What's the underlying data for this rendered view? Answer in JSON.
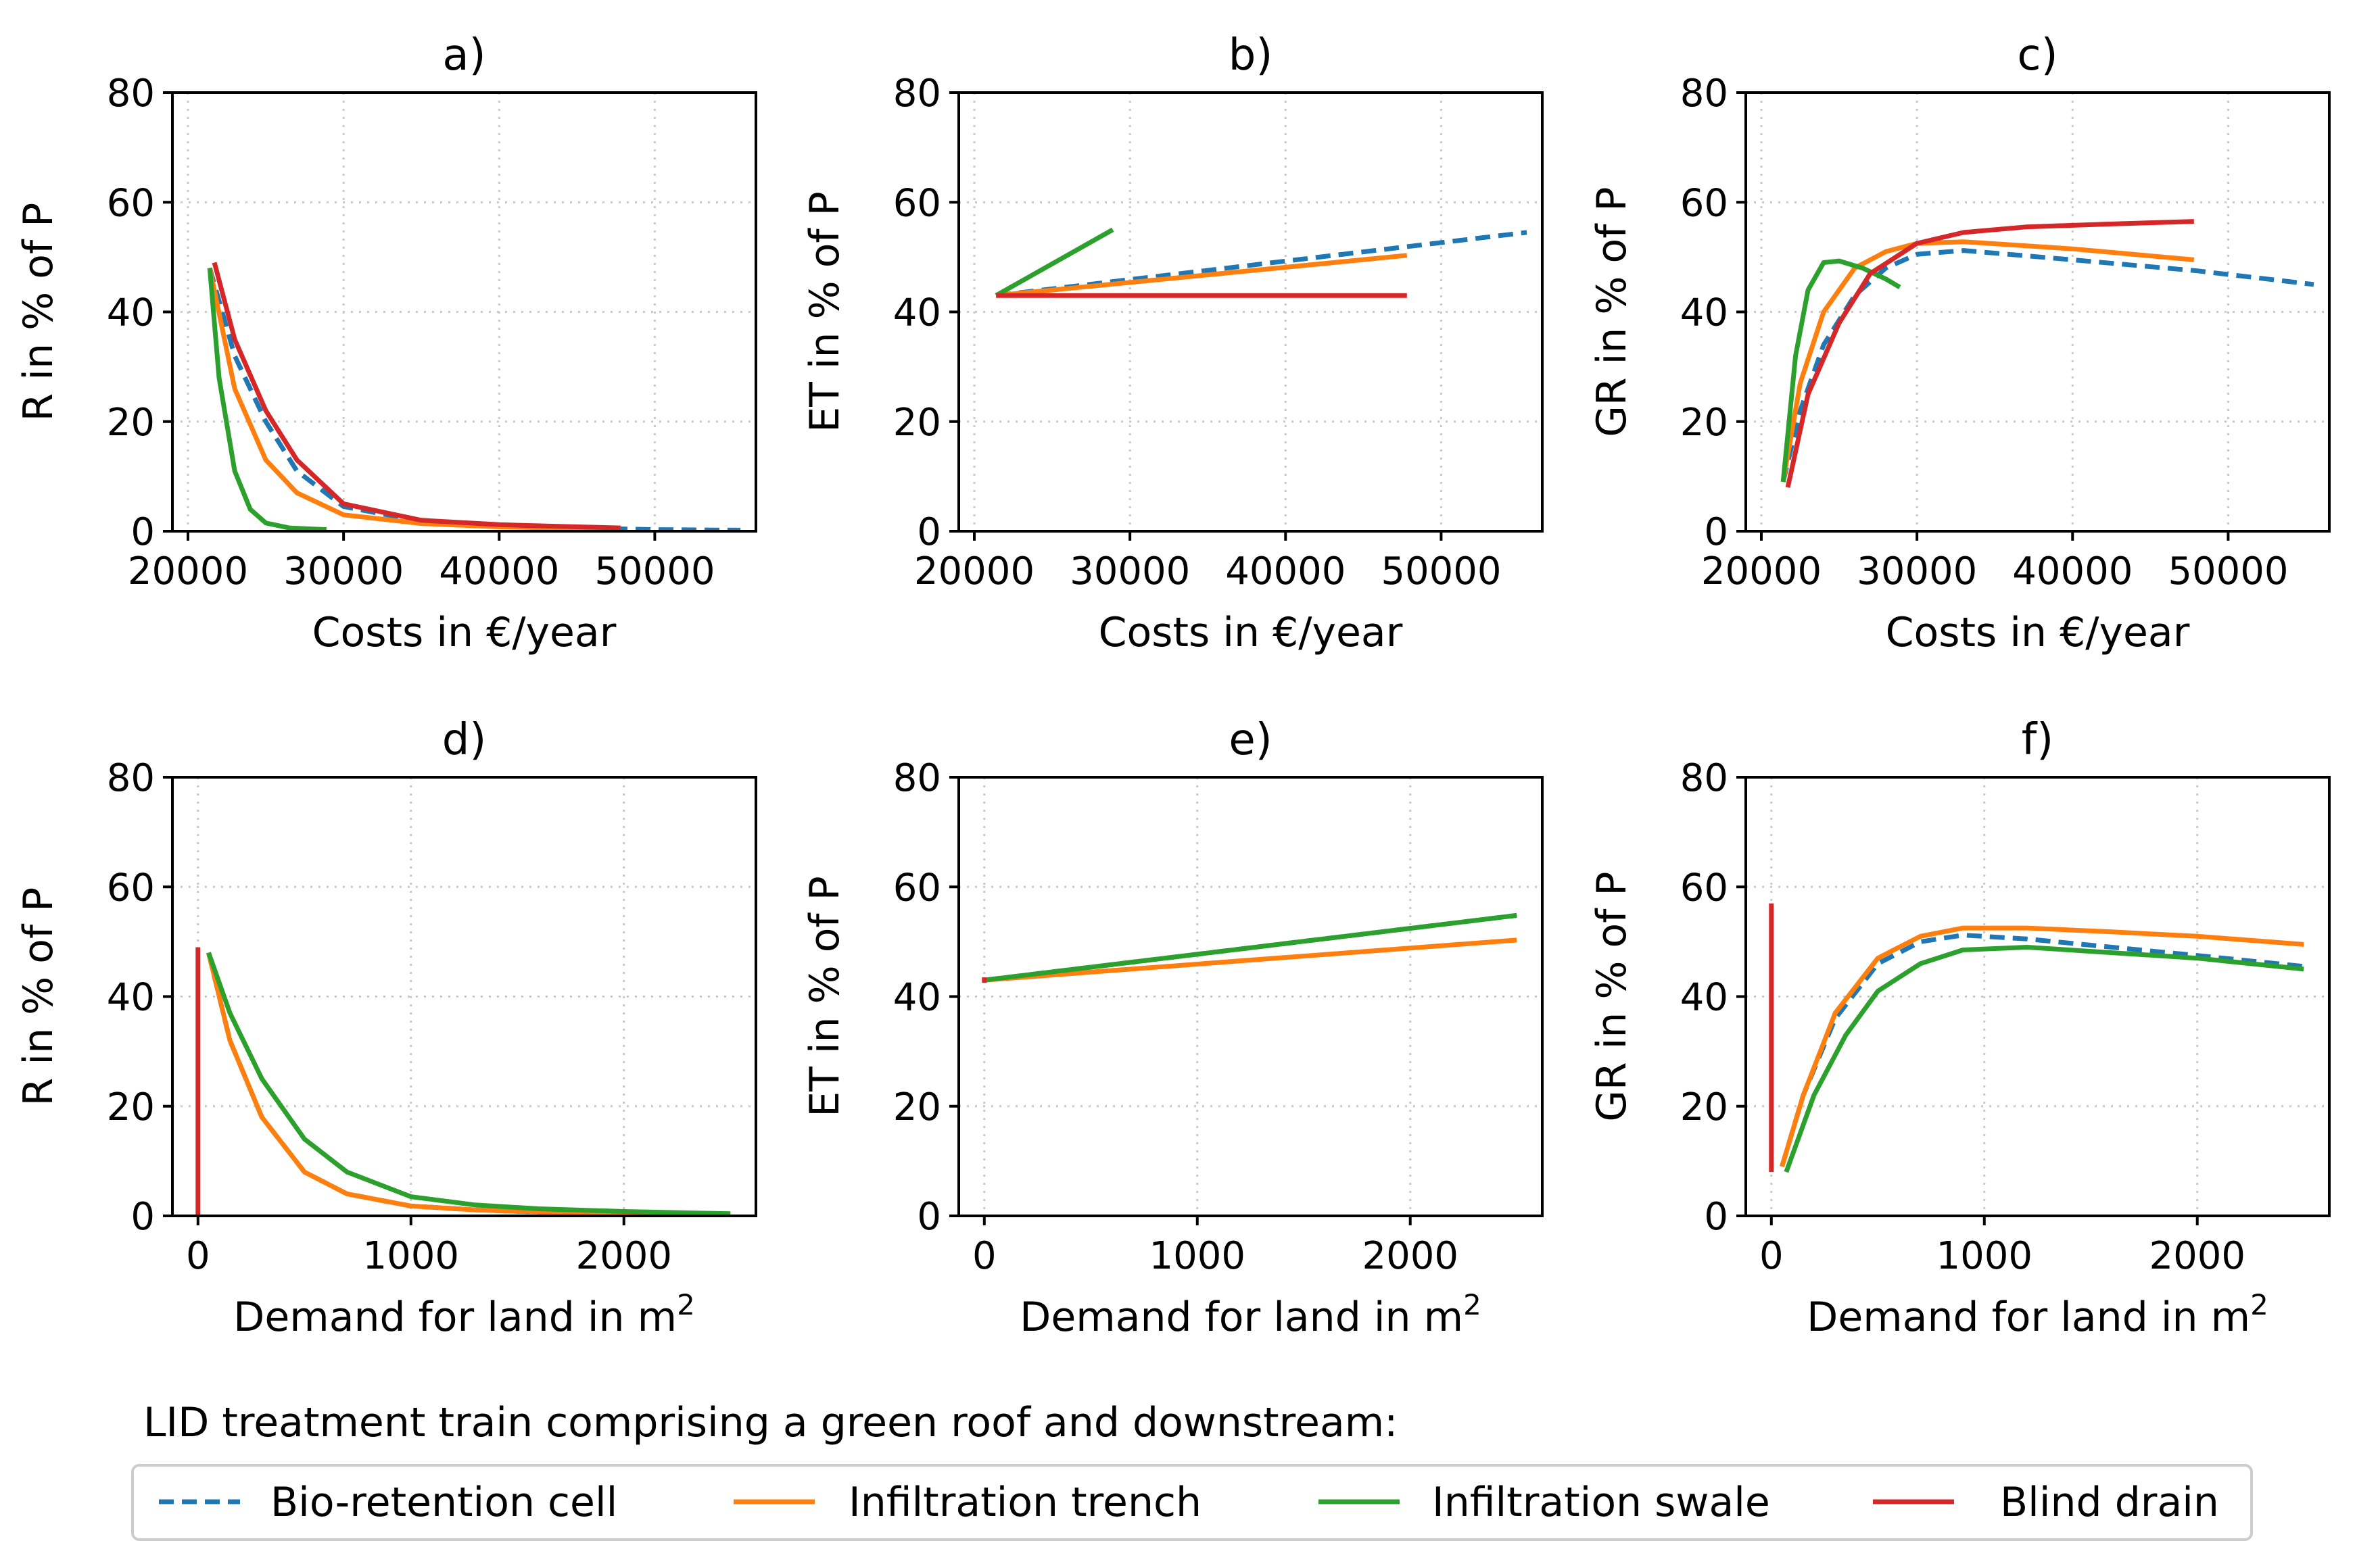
{
  "figure_note": "LID treatment train comprising a green roof and downstream:",
  "legend": [
    {
      "label": "Bio-retention cell",
      "color": "#1f77b4",
      "dash": true
    },
    {
      "label": "Infiltration trench",
      "color": "#ff7f0e",
      "dash": false
    },
    {
      "label": "Infiltration swale",
      "color": "#2ca02c",
      "dash": false
    },
    {
      "label": "Blind drain",
      "color": "#d62728",
      "dash": false
    }
  ],
  "chart_data": [
    {
      "type": "line",
      "title": "a)",
      "xlabel": "Costs in €/year",
      "ylabel": "R in % of P",
      "xlabel_sup": "",
      "xlim": [
        19000,
        56500
      ],
      "ylim": [
        0,
        80
      ],
      "xticks": [
        20000,
        30000,
        40000,
        50000
      ],
      "yticks": [
        0,
        20,
        40,
        60,
        80
      ],
      "series": [
        {
          "name": "Bio-retention cell",
          "x": [
            21400,
            23000,
            25000,
            27000,
            30000,
            35000,
            40000,
            45000,
            50000,
            55500
          ],
          "y": [
            48,
            32,
            20,
            11,
            4.5,
            1.8,
            1.0,
            0.6,
            0.3,
            0.2
          ]
        },
        {
          "name": "Infiltration trench",
          "x": [
            21400,
            23000,
            25000,
            27000,
            30000,
            35000,
            40000,
            45000,
            47800
          ],
          "y": [
            48,
            26,
            13,
            7,
            3,
            1.4,
            0.8,
            0.5,
            0.4
          ]
        },
        {
          "name": "Infiltration swale",
          "x": [
            21400,
            22000,
            23000,
            24000,
            25000,
            26500,
            28900
          ],
          "y": [
            48,
            28,
            11,
            4,
            1.5,
            0.6,
            0.3
          ]
        },
        {
          "name": "Blind drain",
          "x": [
            21700,
            23000,
            25000,
            27000,
            30000,
            35000,
            40000,
            45000,
            47800
          ],
          "y": [
            49,
            35,
            22,
            13,
            5,
            2,
            1.2,
            0.8,
            0.6
          ]
        }
      ]
    },
    {
      "type": "line",
      "title": "b)",
      "xlabel": "Costs in €/year",
      "ylabel": "ET in % of P",
      "xlabel_sup": "",
      "xlim": [
        19000,
        56500
      ],
      "ylim": [
        0,
        80
      ],
      "xticks": [
        20000,
        30000,
        40000,
        50000
      ],
      "yticks": [
        0,
        20,
        40,
        60,
        80
      ],
      "series": [
        {
          "name": "Bio-retention cell",
          "x": [
            21400,
            55500
          ],
          "y": [
            43,
            54.5
          ]
        },
        {
          "name": "Infiltration trench",
          "x": [
            21400,
            47800
          ],
          "y": [
            43,
            50.3
          ]
        },
        {
          "name": "Infiltration swale",
          "x": [
            21400,
            28900
          ],
          "y": [
            43,
            55
          ]
        },
        {
          "name": "Blind drain",
          "x": [
            21400,
            47800
          ],
          "y": [
            43,
            43
          ]
        }
      ]
    },
    {
      "type": "line",
      "title": "c)",
      "xlabel": "Costs in €/year",
      "ylabel": "GR in % of P",
      "xlabel_sup": "",
      "xlim": [
        19000,
        56500
      ],
      "ylim": [
        0,
        80
      ],
      "xticks": [
        20000,
        30000,
        40000,
        50000
      ],
      "yticks": [
        0,
        20,
        40,
        60,
        80
      ],
      "series": [
        {
          "name": "Bio-retention cell",
          "x": [
            21400,
            22500,
            24000,
            26000,
            28000,
            30000,
            33000,
            40000,
            48000,
            55500
          ],
          "y": [
            9,
            22,
            34,
            43,
            48,
            50.5,
            51.2,
            49.5,
            47.5,
            45
          ]
        },
        {
          "name": "Infiltration trench",
          "x": [
            21400,
            22500,
            24000,
            26000,
            28000,
            30000,
            33000,
            40000,
            47800
          ],
          "y": [
            9,
            27,
            40,
            48,
            51,
            52.5,
            52.8,
            51.5,
            49.5
          ]
        },
        {
          "name": "Infiltration swale",
          "x": [
            21400,
            22200,
            23000,
            24000,
            25000,
            26500,
            28000,
            28900
          ],
          "y": [
            9,
            32,
            44,
            49,
            49.3,
            48,
            46,
            44.5
          ]
        },
        {
          "name": "Blind drain",
          "x": [
            21700,
            23000,
            25000,
            27000,
            30000,
            33000,
            37000,
            42000,
            47800
          ],
          "y": [
            8,
            25,
            38,
            47,
            52.5,
            54.5,
            55.5,
            56,
            56.5
          ]
        }
      ]
    },
    {
      "type": "line",
      "title": "d)",
      "xlabel": "Demand for land in m",
      "ylabel": "R in % of P",
      "xlabel_sup": "2",
      "xlim": [
        -120,
        2620
      ],
      "ylim": [
        0,
        80
      ],
      "xticks": [
        0,
        1000,
        2000
      ],
      "yticks": [
        0,
        20,
        40,
        60,
        80
      ],
      "series": [
        {
          "name": "Bio-retention cell",
          "x": [
            50,
            150,
            300,
            500,
            700,
            1000,
            1300,
            1600,
            2000,
            2500
          ],
          "y": [
            48,
            32,
            18,
            8,
            4,
            1.8,
            1.1,
            0.7,
            0.4,
            0.2
          ]
        },
        {
          "name": "Infiltration trench",
          "x": [
            50,
            150,
            300,
            500,
            700,
            1000,
            1300,
            1600,
            2000,
            2500
          ],
          "y": [
            48,
            32,
            18,
            8,
            4,
            1.8,
            1.1,
            0.7,
            0.4,
            0.2
          ]
        },
        {
          "name": "Infiltration swale",
          "x": [
            50,
            150,
            300,
            500,
            700,
            1000,
            1300,
            1600,
            2000,
            2500
          ],
          "y": [
            48,
            37,
            25,
            14,
            8,
            3.5,
            2,
            1.3,
            0.8,
            0.4
          ]
        },
        {
          "name": "Blind drain",
          "x": [
            0,
            0
          ],
          "y": [
            0,
            49
          ]
        }
      ]
    },
    {
      "type": "line",
      "title": "e)",
      "xlabel": "Demand for land in m",
      "ylabel": "ET in % of P",
      "xlabel_sup": "2",
      "xlim": [
        -120,
        2620
      ],
      "ylim": [
        0,
        80
      ],
      "xticks": [
        0,
        1000,
        2000
      ],
      "yticks": [
        0,
        20,
        40,
        60,
        80
      ],
      "series": [
        {
          "name": "Bio-retention cell",
          "x": [
            0,
            2500
          ],
          "y": [
            43,
            54.8
          ]
        },
        {
          "name": "Infiltration trench",
          "x": [
            0,
            2500
          ],
          "y": [
            43,
            50.3
          ]
        },
        {
          "name": "Infiltration swale",
          "x": [
            0,
            2500
          ],
          "y": [
            43,
            54.8
          ]
        },
        {
          "name": "Blind drain",
          "x": [
            0,
            0
          ],
          "y": [
            42.5,
            43.5
          ]
        }
      ]
    },
    {
      "type": "line",
      "title": "f)",
      "xlabel": "Demand for land in m",
      "ylabel": "GR in % of P",
      "xlabel_sup": "2",
      "xlim": [
        -120,
        2620
      ],
      "ylim": [
        0,
        80
      ],
      "xticks": [
        0,
        1000,
        2000
      ],
      "yticks": [
        0,
        20,
        40,
        60,
        80
      ],
      "series": [
        {
          "name": "Bio-retention cell",
          "x": [
            50,
            150,
            300,
            500,
            700,
            900,
            1200,
            1600,
            2000,
            2500
          ],
          "y": [
            9,
            22,
            36,
            46,
            50,
            51.2,
            50.5,
            49,
            47.5,
            45.5
          ]
        },
        {
          "name": "Infiltration trench",
          "x": [
            50,
            150,
            300,
            500,
            700,
            900,
            1200,
            1600,
            2000,
            2500
          ],
          "y": [
            9,
            22,
            37,
            47,
            51,
            52.5,
            52.5,
            51.8,
            51,
            49.5
          ]
        },
        {
          "name": "Infiltration swale",
          "x": [
            70,
            200,
            350,
            500,
            700,
            900,
            1200,
            1600,
            2000,
            2500
          ],
          "y": [
            8,
            22,
            33,
            41,
            46,
            48.5,
            49,
            48,
            47,
            45
          ]
        },
        {
          "name": "Blind drain",
          "x": [
            0,
            0
          ],
          "y": [
            8,
            57
          ]
        }
      ]
    }
  ]
}
